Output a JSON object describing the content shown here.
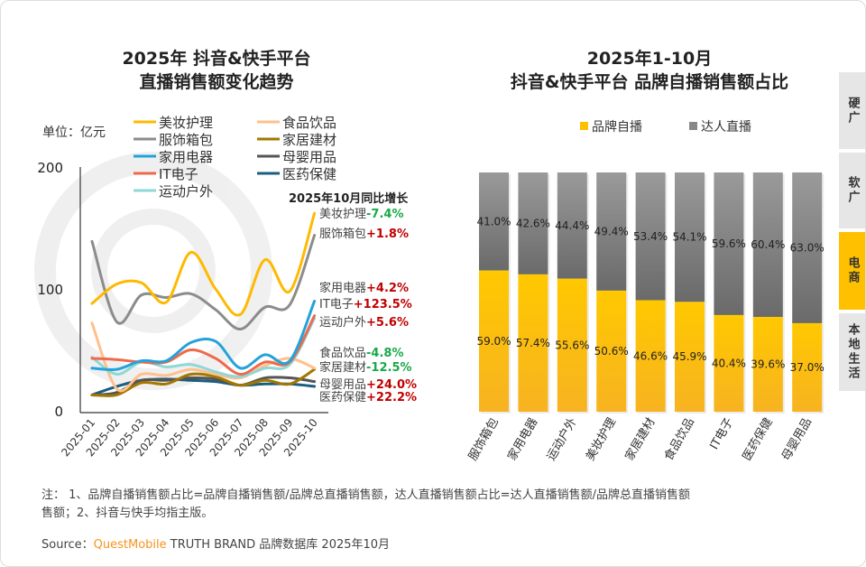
{
  "left_title": [
    "2025年 抖音&快手平台",
    "直播销售额变化趋势"
  ],
  "right_title": [
    "2025年1-10月",
    "抖音&快手平台 品牌自播销售额占比"
  ],
  "side_tabs": [
    {
      "label": "硬广",
      "active": false
    },
    {
      "label": "软广",
      "active": false
    },
    {
      "label": "电商",
      "active": true
    },
    {
      "label": "本地生活",
      "active": false
    }
  ],
  "footnote": [
    "注： 1、品牌自播销售额占比=品牌自播销售额/品牌总直播销售额，达人直播销售额占比=达人直播销售额/品牌总直播销售额",
    "售额；2、抖音与快手均指主版。"
  ],
  "source": {
    "prefix": "Source：",
    "brand": "QuestMobile",
    "rest": " TRUTH BRAND 品牌数据库 2025年10月"
  },
  "chart_data": [
    {
      "type": "line",
      "unit_label": "单位：亿元",
      "x": [
        "2025-01",
        "2025-02",
        "2025-03",
        "2025-04",
        "2025-05",
        "2025-06",
        "2025-07",
        "2025-08",
        "2025-09",
        "2025-10"
      ],
      "ylim": [
        0,
        200
      ],
      "yticks": [
        "0",
        "100",
        "200"
      ],
      "grid": false,
      "legend_position": "top",
      "annotation_title": "2025年10月同比增长",
      "series": [
        {
          "name": "美妆护理",
          "color": "#FFB900",
          "values": [
            88,
            104,
            105,
            89,
            130,
            100,
            79,
            124,
            98,
            162
          ],
          "growth": "-7.4%",
          "growth_color": "#1BA84A"
        },
        {
          "name": "服饰箱包",
          "color": "#8C8C8C",
          "values": [
            139,
            73,
            95,
            93,
            96,
            83,
            67,
            85,
            87,
            144
          ],
          "growth": "+1.8%",
          "growth_color": "#C00000"
        },
        {
          "name": "家用电器",
          "color": "#23A3DA",
          "values": [
            35,
            34,
            41,
            41,
            56,
            57,
            35,
            46,
            41,
            90
          ],
          "growth": "+4.2%",
          "growth_color": "#C00000"
        },
        {
          "name": "IT电子",
          "color": "#EE6A4C",
          "values": [
            43,
            42,
            40,
            40,
            50,
            43,
            30,
            40,
            40,
            78
          ],
          "growth": "+123.5%",
          "growth_color": "#C00000"
        },
        {
          "name": "运动户外",
          "color": "#8ED8D8",
          "values": [
            44,
            30,
            40,
            36,
            38,
            32,
            28,
            35,
            38,
            76
          ],
          "growth": "+5.6%",
          "growth_color": "#C00000"
        },
        {
          "name": "食品饮品",
          "color": "#FFC08E",
          "values": [
            72,
            18,
            30,
            29,
            34,
            30,
            27,
            37,
            43,
            35
          ],
          "growth": "-4.8%",
          "growth_color": "#1BA84A"
        },
        {
          "name": "家居建材",
          "color": "#A37800",
          "values": [
            13,
            13,
            23,
            22,
            30,
            28,
            21,
            25,
            22,
            34
          ],
          "growth": "-12.5%",
          "growth_color": "#1BA84A"
        },
        {
          "name": "母婴用品",
          "color": "#555555",
          "values": [
            13,
            15,
            25,
            25,
            27,
            26,
            21,
            27,
            27,
            24
          ],
          "growth": "+24.0%",
          "growth_color": "#C00000"
        },
        {
          "name": "医药保健",
          "color": "#1B5E7E",
          "values": [
            13,
            20,
            25,
            26,
            25,
            24,
            21,
            22,
            22,
            20
          ],
          "growth": "+22.2%",
          "growth_color": "#C00000"
        }
      ]
    },
    {
      "type": "bar",
      "stacked": true,
      "percent": true,
      "categories": [
        "服饰箱包",
        "家用电器",
        "运动户外",
        "美妆护理",
        "家居建材",
        "食品饮品",
        "IT电子",
        "医药保健",
        "母婴用品"
      ],
      "legend_position": "top",
      "series": [
        {
          "name": "品牌自播",
          "color": "#FFC000",
          "values": [
            59.0,
            57.4,
            55.6,
            50.6,
            46.6,
            45.9,
            40.4,
            39.6,
            37.0
          ]
        },
        {
          "name": "达人直播",
          "color": "#888888",
          "values": [
            41.0,
            42.6,
            44.4,
            49.4,
            53.4,
            54.1,
            59.6,
            60.4,
            63.0
          ]
        }
      ]
    }
  ]
}
